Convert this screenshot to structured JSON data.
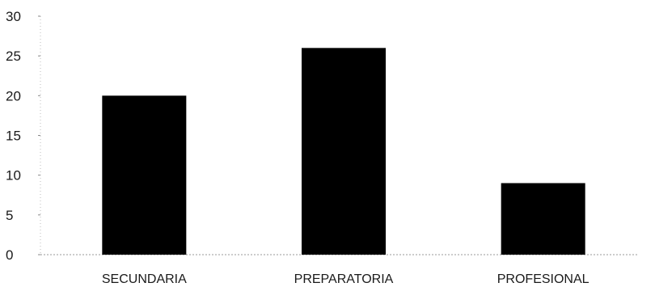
{
  "chart_data": {
    "type": "bar",
    "title": "",
    "xlabel": "",
    "ylabel": "",
    "categories": [
      "SECUNDARIA",
      "PREPARATORIA",
      "PROFESIONAL"
    ],
    "values": [
      20,
      26,
      9
    ],
    "yticks": [
      "0",
      "5",
      "10",
      "15",
      "20",
      "25",
      "30"
    ],
    "ylim": [
      0,
      30
    ],
    "grid": false,
    "legend": "none",
    "bar_color": "#000000"
  }
}
